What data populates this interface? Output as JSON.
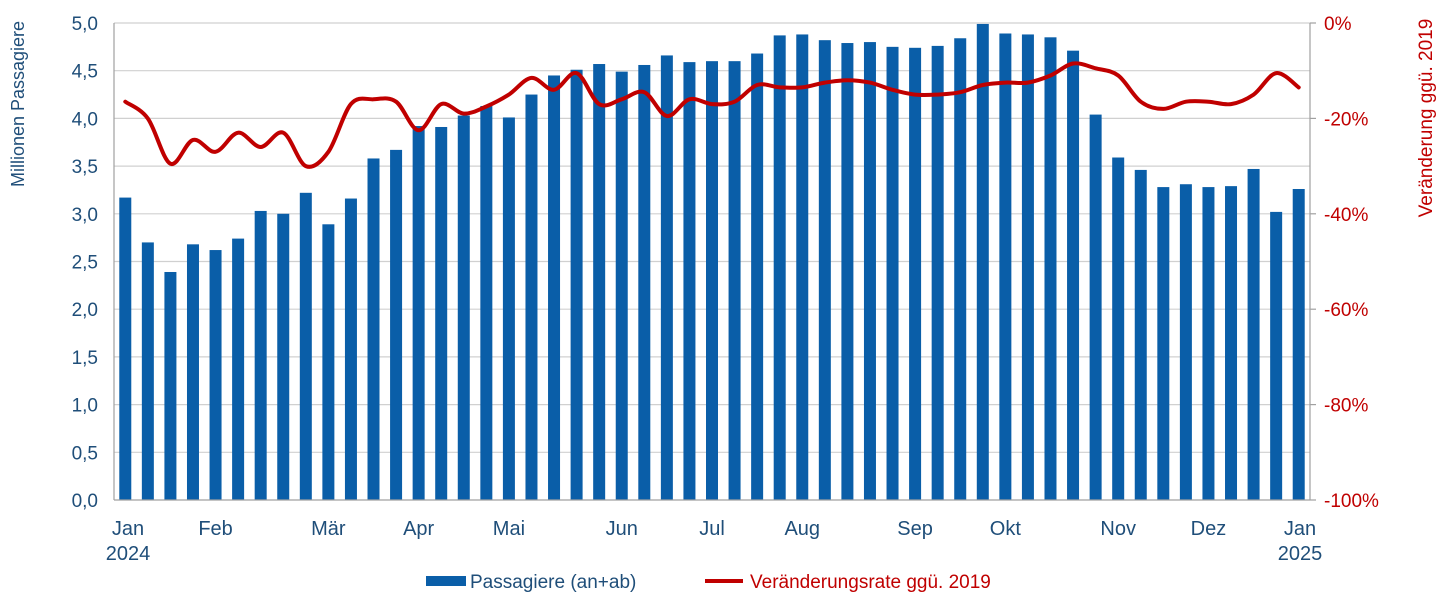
{
  "chart_data": {
    "type": "bar",
    "ylabel": "Millionen Passagiere",
    "y2label": "Veränderung ggü. 2019",
    "ylim": [
      0,
      5
    ],
    "y2lim": [
      -100,
      0
    ],
    "yticks": [
      "0,0",
      "0,5",
      "1,0",
      "1,5",
      "2,0",
      "2,5",
      "3,0",
      "3,5",
      "4,0",
      "4,5",
      "5,0"
    ],
    "y2ticks": [
      "-100%",
      "-80%",
      "-60%",
      "-40%",
      "-20%",
      "0%"
    ],
    "month_labels": [
      {
        "label": "Jan",
        "year": "2024",
        "bar": 0
      },
      {
        "label": "Feb",
        "bar": 4
      },
      {
        "label": "Mär",
        "bar": 9
      },
      {
        "label": "Apr",
        "bar": 13
      },
      {
        "label": "Mai",
        "bar": 17
      },
      {
        "label": "Jun",
        "bar": 22
      },
      {
        "label": "Jul",
        "bar": 26
      },
      {
        "label": "Aug",
        "bar": 30
      },
      {
        "label": "Sep",
        "bar": 35
      },
      {
        "label": "Okt",
        "bar": 39
      },
      {
        "label": "Nov",
        "bar": 44
      },
      {
        "label": "Dez",
        "bar": 48
      },
      {
        "label": "Jan",
        "year": "2025",
        "bar": 52
      }
    ],
    "series": [
      {
        "name": "Passagiere (an+ab)",
        "type": "bar",
        "axis": "left",
        "color": "#0a5ea8",
        "values": [
          3.17,
          2.7,
          2.39,
          2.68,
          2.62,
          2.74,
          3.03,
          3.0,
          3.22,
          2.89,
          3.16,
          3.58,
          3.67,
          3.92,
          3.91,
          4.03,
          4.13,
          4.01,
          4.25,
          4.45,
          4.51,
          4.57,
          4.49,
          4.56,
          4.66,
          4.59,
          4.6,
          4.6,
          4.68,
          4.87,
          4.88,
          4.82,
          4.79,
          4.8,
          4.75,
          4.74,
          4.76,
          4.84,
          4.99,
          4.89,
          4.88,
          4.85,
          4.71,
          4.04,
          3.59,
          3.46,
          3.28,
          3.31,
          3.28,
          3.29,
          3.47,
          3.02,
          3.26
        ]
      },
      {
        "name": "Veränderungsrate ggü. 2019",
        "type": "line",
        "axis": "right",
        "color": "#c00000",
        "values": [
          -16.5,
          -20.0,
          -29.5,
          -24.5,
          -27.0,
          -23.0,
          -26.0,
          -23.0,
          -30.0,
          -27.0,
          -17.0,
          -16.0,
          -16.5,
          -22.5,
          -17.0,
          -19.0,
          -17.5,
          -15.0,
          -11.5,
          -14.0,
          -10.5,
          -17.0,
          -16.0,
          -14.5,
          -19.5,
          -16.0,
          -17.0,
          -16.5,
          -13.0,
          -13.5,
          -13.5,
          -12.5,
          -12.0,
          -12.5,
          -14.0,
          -15.0,
          -15.0,
          -14.5,
          -13.0,
          -12.5,
          -12.5,
          -11.0,
          -8.5,
          -9.5,
          -11.0,
          -16.5,
          -18.0,
          -16.5,
          -16.5,
          -17.0,
          -15.0,
          -10.5,
          -13.5
        ]
      }
    ],
    "legend_position": "bottom",
    "grid": true
  }
}
